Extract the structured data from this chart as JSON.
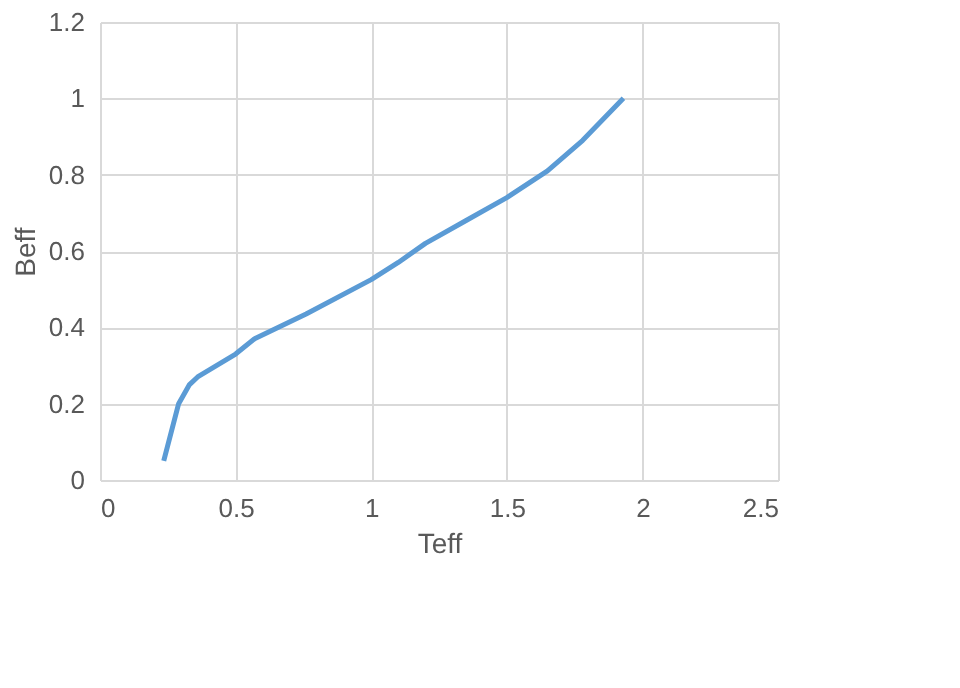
{
  "chart_data": {
    "type": "line",
    "xlabel": "Teff",
    "ylabel": "Beff",
    "x": [
      0.235,
      0.29,
      0.33,
      0.36,
      0.5,
      0.57,
      0.76,
      1.0,
      1.1,
      1.2,
      1.35,
      1.5,
      1.65,
      1.78,
      1.93
    ],
    "series": [
      {
        "color": "#5b9bd5",
        "values": [
          0.05,
          0.2,
          0.25,
          0.27,
          0.33,
          0.37,
          0.435,
          0.525,
          0.57,
          0.62,
          0.68,
          0.74,
          0.81,
          0.89,
          1.0
        ]
      }
    ],
    "xlim": [
      0,
      2.5
    ],
    "xticks": [
      0,
      0.5,
      1,
      1.5,
      2,
      2.5
    ],
    "ylim": [
      0,
      1.2
    ],
    "yticks": [
      0,
      0.2,
      0.4,
      0.6,
      0.8,
      1,
      1.2
    ],
    "grid": true,
    "marker": "none",
    "line_style": "solid"
  }
}
